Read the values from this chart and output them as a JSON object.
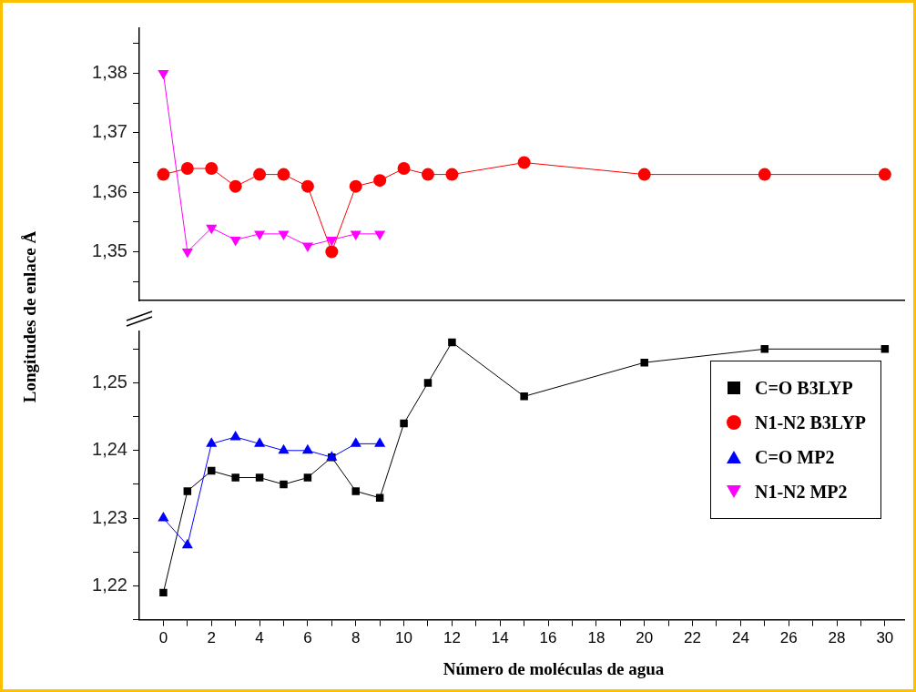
{
  "chart_data": [
    {
      "type": "line",
      "x": [
        0,
        1,
        2,
        3,
        4,
        5,
        6,
        7,
        8,
        9,
        10,
        11,
        12,
        15,
        20,
        25,
        30
      ],
      "xlim": [
        -1,
        30.8
      ],
      "tick_labels": "y",
      "ylim": [
        1.3418,
        1.3876
      ],
      "yticks": [
        {
          "value": 1.345,
          "label": null
        },
        {
          "value": 1.35,
          "label": "1,35"
        },
        {
          "value": 1.355,
          "label": null
        },
        {
          "value": 1.36,
          "label": "1,36"
        },
        {
          "value": 1.365,
          "label": null
        },
        {
          "value": 1.37,
          "label": "1,37"
        },
        {
          "value": 1.375,
          "label": null
        },
        {
          "value": 1.38,
          "label": "1,38"
        },
        {
          "value": 1.385,
          "label": null
        }
      ],
      "grid": false,
      "legend": "right",
      "series": [
        {
          "name": "N1-N2 B3LYP",
          "color": "#ff0000",
          "marker": "circle",
          "values": [
            1.363,
            1.364,
            1.364,
            1.361,
            1.363,
            1.363,
            1.361,
            1.35,
            1.361,
            1.362,
            1.364,
            1.363,
            1.363,
            1.365,
            1.363,
            1.363,
            1.363
          ]
        },
        {
          "name": "N1-N2 MP2",
          "color": "#ff00ff",
          "marker": "triangle-down",
          "x": [
            0,
            1,
            2,
            3,
            4,
            5,
            6,
            7,
            8,
            9
          ],
          "values": [
            1.38,
            1.35,
            1.354,
            1.352,
            1.353,
            1.353,
            1.351,
            1.352,
            1.353,
            1.353
          ]
        }
      ]
    },
    {
      "type": "line",
      "x": [
        0,
        1,
        2,
        3,
        4,
        5,
        6,
        7,
        8,
        9,
        10,
        11,
        12,
        15,
        20,
        25,
        30
      ],
      "xlim": [
        -1,
        30.8
      ],
      "ylim": [
        1.215,
        1.2576
      ],
      "xticks": [
        0,
        {
          "value": 1,
          "label": null
        },
        2,
        {
          "value": 3,
          "label": null
        },
        4,
        {
          "value": 5,
          "label": null
        },
        6,
        {
          "value": 7,
          "label": null
        },
        8,
        {
          "value": 9,
          "label": null
        },
        10,
        {
          "value": 11,
          "label": null
        },
        12,
        {
          "value": 13,
          "label": null
        },
        14,
        {
          "value": 15,
          "label": null
        },
        16,
        {
          "value": 17,
          "label": null
        },
        18,
        {
          "value": 19,
          "label": null
        },
        20,
        {
          "value": 21,
          "label": null
        },
        22,
        {
          "value": 23,
          "label": null
        },
        24,
        {
          "value": 25,
          "label": null
        },
        26,
        {
          "value": 27,
          "label": null
        },
        28,
        {
          "value": 29,
          "label": null
        },
        30
      ],
      "yticks": [
        {
          "value": 1.215,
          "label": null
        },
        {
          "value": 1.22,
          "label": "1,22"
        },
        {
          "value": 1.225,
          "label": null
        },
        {
          "value": 1.23,
          "label": "1,23"
        },
        {
          "value": 1.235,
          "label": null
        },
        {
          "value": 1.24,
          "label": "1,24"
        },
        {
          "value": 1.245,
          "label": null
        },
        {
          "value": 1.25,
          "label": "1,25"
        },
        {
          "value": 1.255,
          "label": null
        }
      ],
      "xlabel": "Número de moléculas de agua",
      "ylabel": "Longitudes de enlace Å",
      "grid": false,
      "legend": "right",
      "series": [
        {
          "name": "C=O B3LYP",
          "color": "#000000",
          "marker": "square",
          "values": [
            1.219,
            1.234,
            1.237,
            1.236,
            1.236,
            1.235,
            1.236,
            1.239,
            1.234,
            1.233,
            1.244,
            1.25,
            1.256,
            1.248,
            1.253,
            1.255,
            1.255
          ]
        },
        {
          "name": "C=O MP2",
          "color": "#0000ff",
          "marker": "triangle",
          "x": [
            0,
            1,
            2,
            3,
            4,
            5,
            6,
            7,
            8,
            9
          ],
          "values": [
            1.23,
            1.226,
            1.241,
            1.242,
            1.241,
            1.24,
            1.24,
            1.239,
            1.241,
            1.241
          ]
        }
      ]
    }
  ]
}
